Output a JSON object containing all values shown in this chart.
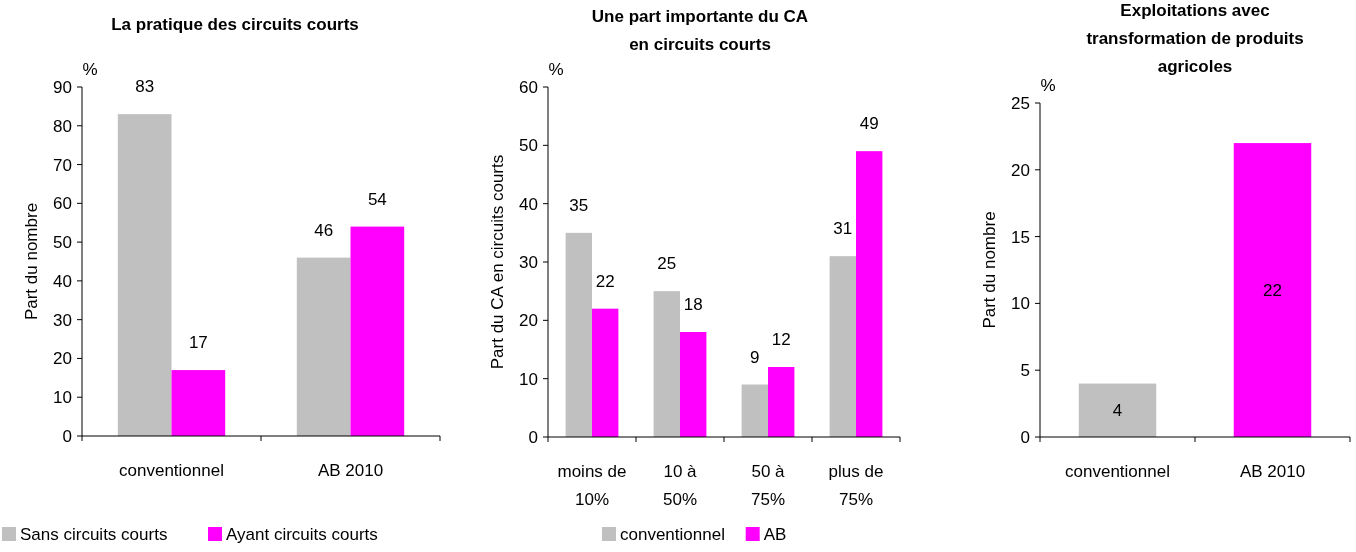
{
  "chart_data": [
    {
      "type": "bar",
      "title": "La pratique des circuits courts",
      "ylabel": "Part du nombre",
      "annotations": [
        "%"
      ],
      "categories": [
        "conventionnel",
        "AB 2010"
      ],
      "series": [
        {
          "name": "Sans circuits courts",
          "color": "#c0c0c0",
          "values": [
            83,
            46
          ]
        },
        {
          "name": "Ayant circuits courts",
          "color": "#ff00ff",
          "values": [
            17,
            54
          ]
        }
      ],
      "ylim": [
        0,
        90
      ],
      "yticks": [
        0,
        10,
        20,
        30,
        40,
        50,
        60,
        70,
        80,
        90
      ],
      "data_labels": true,
      "legend": "bottom",
      "grid": false
    },
    {
      "type": "bar",
      "title": "Une part importante du CA en circuits courts",
      "ylabel": "Part du CA en circuits courts",
      "annotations": [
        "%"
      ],
      "categories": [
        "moins de 10%",
        "10 à 50%",
        "50 à 75%",
        "plus de 75%"
      ],
      "series": [
        {
          "name": "conventionnel",
          "color": "#c0c0c0",
          "values": [
            35,
            25,
            9,
            31
          ]
        },
        {
          "name": "AB",
          "color": "#ff00ff",
          "values": [
            22,
            18,
            12,
            49
          ]
        }
      ],
      "ylim": [
        0,
        60
      ],
      "yticks": [
        0,
        10,
        20,
        30,
        40,
        50,
        60
      ],
      "data_labels": true,
      "legend": "bottom",
      "grid": false
    },
    {
      "type": "bar",
      "title": "Exploitations avec transformation de produits agricoles",
      "ylabel": "Part du nombre",
      "annotations": [
        "%"
      ],
      "categories": [
        "conventionnel",
        "AB 2010"
      ],
      "values": [
        4,
        22
      ],
      "colors": [
        "#c0c0c0",
        "#ff00ff"
      ],
      "ylim": [
        0,
        25
      ],
      "yticks": [
        0,
        5,
        10,
        15,
        20,
        25
      ],
      "data_labels": true,
      "legend": false,
      "grid": false
    }
  ]
}
